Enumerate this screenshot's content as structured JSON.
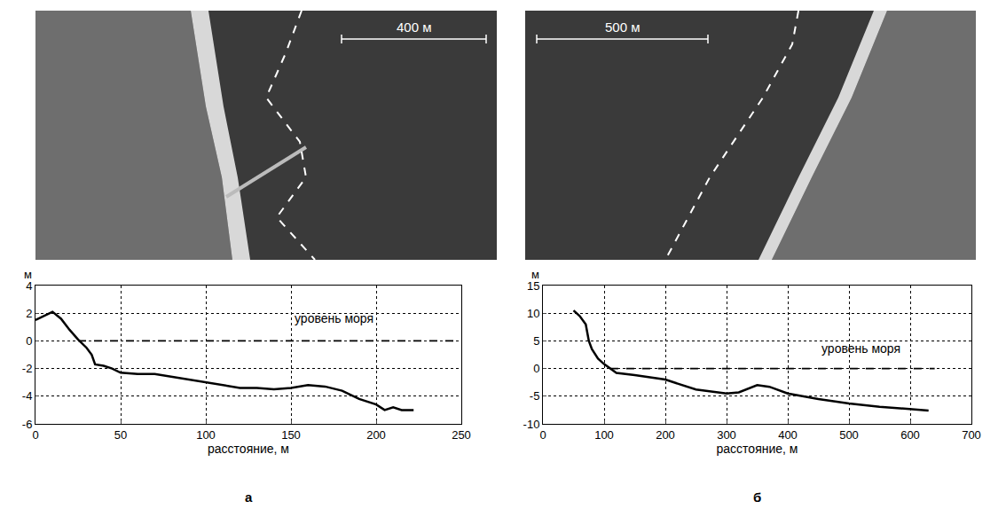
{
  "chart_data": [
    {
      "type": "line",
      "panel": "а",
      "scale_bar": "400 м",
      "x_title": "расстояние, м",
      "y_title": "м",
      "xlim": [
        0,
        250
      ],
      "xticks": [
        0,
        50,
        100,
        150,
        200,
        250
      ],
      "ylim": [
        -6,
        4
      ],
      "yticks": [
        -6,
        -4,
        -2,
        0,
        2,
        4
      ],
      "grid": true,
      "series": [
        {
          "color": "#000000",
          "line_style": "solid",
          "x": [
            0,
            5,
            10,
            15,
            20,
            25,
            30,
            33,
            35,
            40,
            45,
            50,
            60,
            70,
            80,
            90,
            100,
            110,
            120,
            130,
            140,
            150,
            160,
            170,
            180,
            190,
            200,
            205,
            210,
            215,
            222
          ],
          "values": [
            1.5,
            1.8,
            2.1,
            1.6,
            0.8,
            0.1,
            -0.5,
            -1.0,
            -1.7,
            -1.8,
            -2.0,
            -2.3,
            -2.4,
            -2.4,
            -2.6,
            -2.8,
            -3.0,
            -3.2,
            -3.4,
            -3.4,
            -3.5,
            -3.4,
            -3.2,
            -3.3,
            -3.6,
            -4.2,
            -4.6,
            -5.0,
            -4.8,
            -5.0,
            -5.0
          ]
        },
        {
          "color": "#000000",
          "line_style": "dash",
          "x": [
            25,
            250
          ],
          "values": [
            0,
            0
          ]
        }
      ],
      "annotations": [
        {
          "text": "уровень моря",
          "x": 175,
          "y": 1.0
        }
      ]
    },
    {
      "type": "line",
      "panel": "б",
      "scale_bar": "500 м",
      "x_title": "расстояние, м",
      "y_title": "м",
      "xlim": [
        0,
        700
      ],
      "xticks": [
        0,
        100,
        200,
        300,
        400,
        500,
        600,
        700
      ],
      "ylim": [
        -10,
        15
      ],
      "yticks": [
        -10,
        -5,
        0,
        5,
        10,
        15
      ],
      "grid": true,
      "series": [
        {
          "color": "#000000",
          "line_style": "solid",
          "x": [
            50,
            60,
            70,
            75,
            80,
            90,
            100,
            110,
            120,
            150,
            200,
            250,
            300,
            320,
            350,
            370,
            400,
            450,
            500,
            550,
            600,
            630
          ],
          "values": [
            10.5,
            9.5,
            8.0,
            5.0,
            3.5,
            1.8,
            0.8,
            0.0,
            -0.8,
            -1.2,
            -2.0,
            -3.8,
            -4.5,
            -4.3,
            -3.0,
            -3.3,
            -4.5,
            -5.5,
            -6.3,
            -6.9,
            -7.4,
            -7.6
          ]
        },
        {
          "color": "#000000",
          "line_style": "dash",
          "x": [
            110,
            640
          ],
          "values": [
            0,
            0
          ]
        }
      ],
      "annotations": [
        {
          "text": "уровень моря",
          "x": 520,
          "y": 2.0
        }
      ]
    }
  ]
}
